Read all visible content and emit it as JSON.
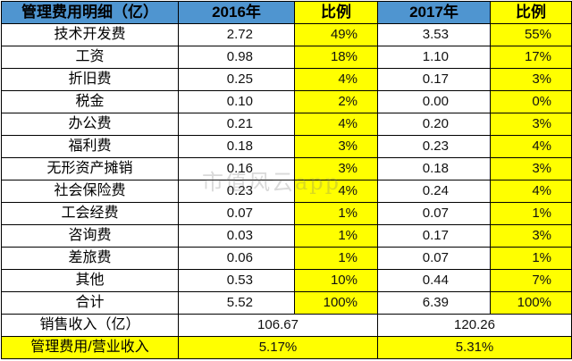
{
  "header": {
    "item": "管理费用明细（亿）",
    "y2016": "2016年",
    "ratio2016": "比例",
    "y2017": "2017年",
    "ratio2017": "比例"
  },
  "rows": [
    {
      "name": "技术开发费",
      "v2016": "2.72",
      "p2016": "49%",
      "v2017": "3.53",
      "p2017": "55%"
    },
    {
      "name": "工资",
      "v2016": "0.98",
      "p2016": "18%",
      "v2017": "1.10",
      "p2017": "17%"
    },
    {
      "name": "折旧费",
      "v2016": "0.25",
      "p2016": "4%",
      "v2017": "0.17",
      "p2017": "3%"
    },
    {
      "name": "税金",
      "v2016": "0.10",
      "p2016": "2%",
      "v2017": "0.00",
      "p2017": "0%"
    },
    {
      "name": "办公费",
      "v2016": "0.21",
      "p2016": "4%",
      "v2017": "0.20",
      "p2017": "3%"
    },
    {
      "name": "福利费",
      "v2016": "0.18",
      "p2016": "3%",
      "v2017": "0.23",
      "p2017": "4%"
    },
    {
      "name": "无形资产摊销",
      "v2016": "0.16",
      "p2016": "3%",
      "v2017": "0.18",
      "p2017": "3%"
    },
    {
      "name": "社会保险费",
      "v2016": "0.23",
      "p2016": "4%",
      "v2017": "0.24",
      "p2017": "4%"
    },
    {
      "name": "工会经费",
      "v2016": "0.07",
      "p2016": "1%",
      "v2017": "0.07",
      "p2017": "1%"
    },
    {
      "name": "咨询费",
      "v2016": "0.03",
      "p2016": "1%",
      "v2017": "0.17",
      "p2017": "3%"
    },
    {
      "name": "差旅费",
      "v2016": "0.06",
      "p2016": "1%",
      "v2017": "0.07",
      "p2017": "1%"
    },
    {
      "name": "其他",
      "v2016": "0.53",
      "p2016": "10%",
      "v2017": "0.44",
      "p2017": "7%"
    },
    {
      "name": "合计",
      "v2016": "5.52",
      "p2016": "100%",
      "v2017": "6.39",
      "p2017": "100%"
    }
  ],
  "sales": {
    "label": "销售收入（亿）",
    "v2016": "106.67",
    "v2017": "120.26"
  },
  "ratio": {
    "label": "管理费用/营业收入",
    "v2016": "5.17%",
    "v2017": "5.31%"
  },
  "watermark": "市值风云app",
  "colors": {
    "header_blue": "#4f95d0",
    "highlight_yellow": "#ffff00",
    "border": "#000000"
  }
}
